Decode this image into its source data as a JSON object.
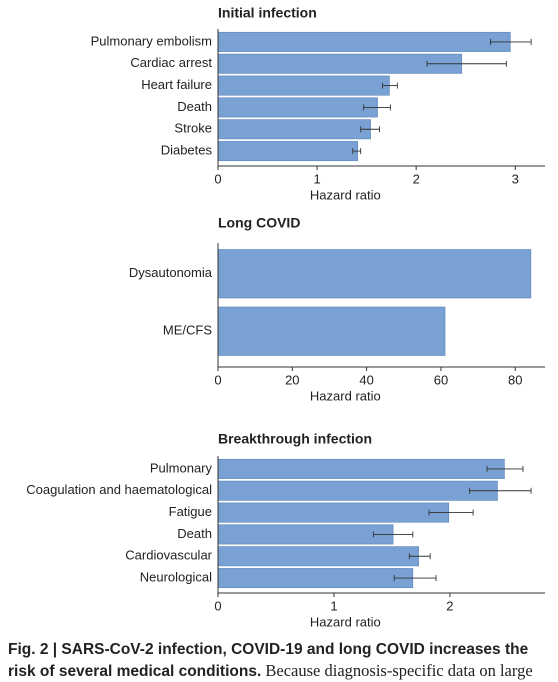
{
  "chart_data": [
    {
      "type": "bar",
      "title": "Initial infection",
      "xlabel": "Hazard ratio",
      "color": "#7aa1d3",
      "categories": [
        "Pulmonary embolism",
        "Cardiac arrest",
        "Heart failure",
        "Death",
        "Stroke",
        "Diabetes"
      ],
      "values": [
        2.95,
        2.46,
        1.73,
        1.61,
        1.54,
        1.41
      ],
      "lower": [
        2.75,
        2.11,
        1.66,
        1.47,
        1.44,
        1.36
      ],
      "upper": [
        3.16,
        2.91,
        1.81,
        1.74,
        1.63,
        1.44
      ],
      "xlim": [
        0,
        3.3
      ],
      "xticks": [
        0,
        1,
        2,
        3
      ]
    },
    {
      "type": "bar",
      "title": "Long COVID",
      "xlabel": "Hazard ratio",
      "color": "#7aa1d3",
      "categories": [
        "Dysautonomia",
        "ME/CFS"
      ],
      "values": [
        84.2,
        61.1
      ],
      "xlim": [
        0,
        88
      ],
      "xticks": [
        0,
        20,
        40,
        60,
        80
      ]
    },
    {
      "type": "bar",
      "title": "Breakthrough infection",
      "xlabel": "Hazard ratio",
      "color": "#7aa1d3",
      "categories": [
        "Pulmonary",
        "Coagulation and haematological",
        "Fatigue",
        "Death",
        "Cardiovascular",
        "Neurological"
      ],
      "values": [
        2.47,
        2.41,
        1.99,
        1.51,
        1.73,
        1.68
      ],
      "lower": [
        2.32,
        2.17,
        1.82,
        1.34,
        1.65,
        1.52
      ],
      "upper": [
        2.63,
        2.7,
        2.2,
        1.68,
        1.83,
        1.88
      ],
      "xlim": [
        0,
        2.82
      ],
      "xticks": [
        0,
        1,
        2
      ]
    }
  ],
  "caption": {
    "bold": "Fig. 2 | SARS-CoV-2 infection, COVID-19 and long COVID increases the risk of several medical conditions.",
    "text": "Because diagnosis-specific data on large"
  }
}
